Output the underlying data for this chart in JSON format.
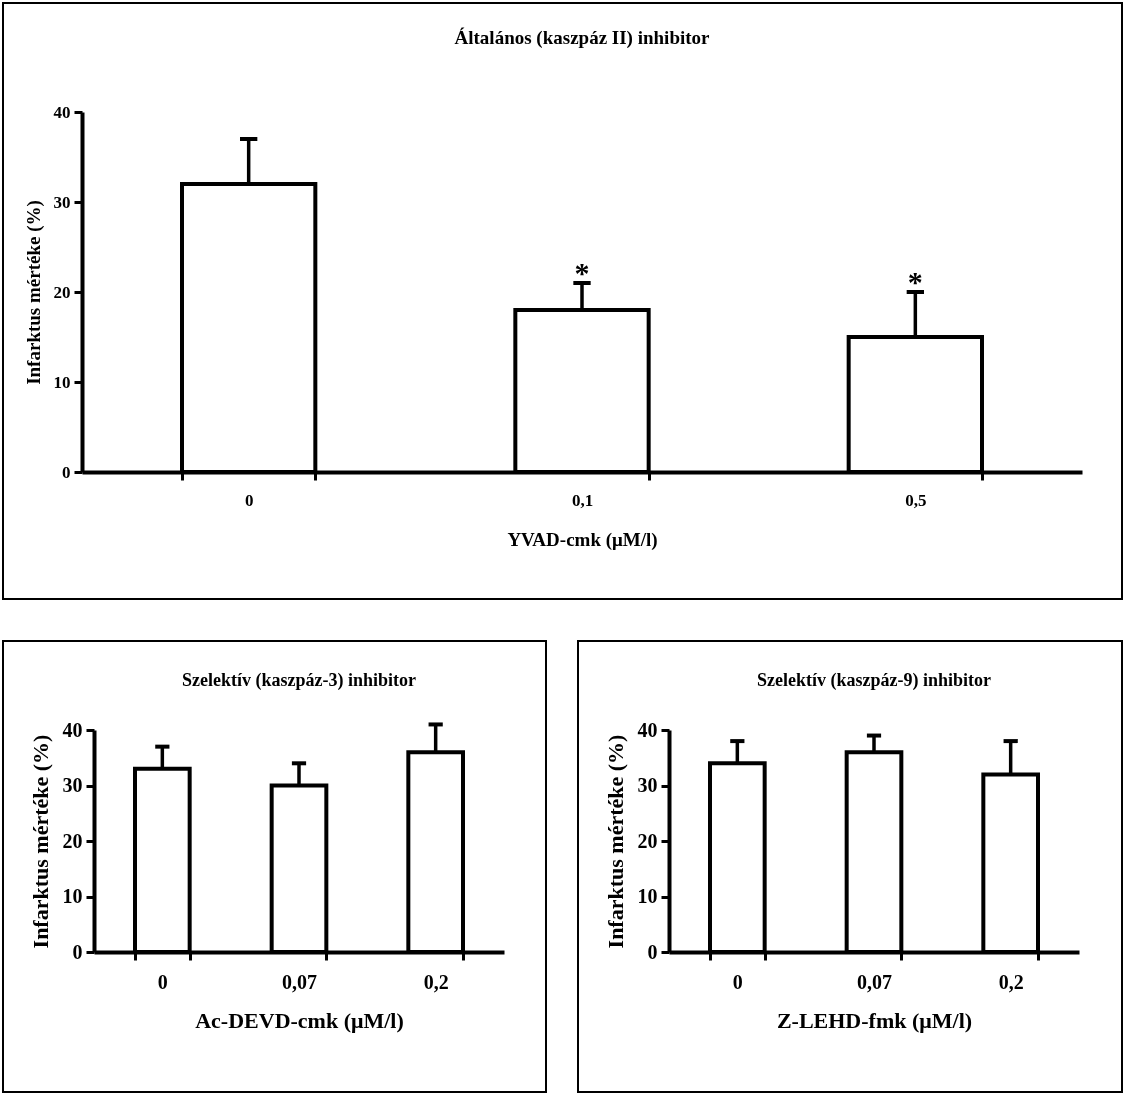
{
  "chart_data": [
    {
      "type": "bar",
      "title": "Általános (kaszpáz II) inhibitor",
      "xlabel": "YVAD-cmk (μM/l)",
      "ylabel": "Infarktus mértéke (%)",
      "categories": [
        "0",
        "0,1",
        "0,5"
      ],
      "values": [
        32,
        18,
        15
      ],
      "errors": [
        5,
        3,
        5
      ],
      "color": "#ffffff",
      "ylim": [
        0,
        40
      ],
      "yticks": [
        0,
        10,
        20,
        30,
        40
      ],
      "annotations": [
        {
          "text": "*",
          "x": "0,1",
          "y": 18
        },
        {
          "text": "*",
          "x": "0,5",
          "y": 15
        }
      ]
    },
    {
      "type": "bar",
      "title": "Szelektív (kaszpáz-3) inhibitor",
      "xlabel": "Ac-DEVD-cmk (μM/l)",
      "ylabel": "Infarktus mértéke (%)",
      "categories": [
        "0",
        "0,07",
        "0,2"
      ],
      "values": [
        33,
        30,
        36
      ],
      "errors": [
        4,
        4,
        5
      ],
      "color": "#ffffff",
      "ylim": [
        0,
        40
      ],
      "yticks": [
        0,
        10,
        20,
        30,
        40
      ]
    },
    {
      "type": "bar",
      "title": "Szelektív (kaszpáz-9) inhibitor",
      "xlabel": "Z-LEHD-fmk (μM/l)",
      "ylabel": "Infarktus mértéke (%)",
      "categories": [
        "0",
        "0,07",
        "0,2"
      ],
      "values": [
        34,
        36,
        32
      ],
      "errors": [
        4,
        3,
        6
      ],
      "color": "#ffffff",
      "ylim": [
        0,
        40
      ],
      "yticks": [
        0,
        10,
        20,
        30,
        40
      ]
    }
  ]
}
